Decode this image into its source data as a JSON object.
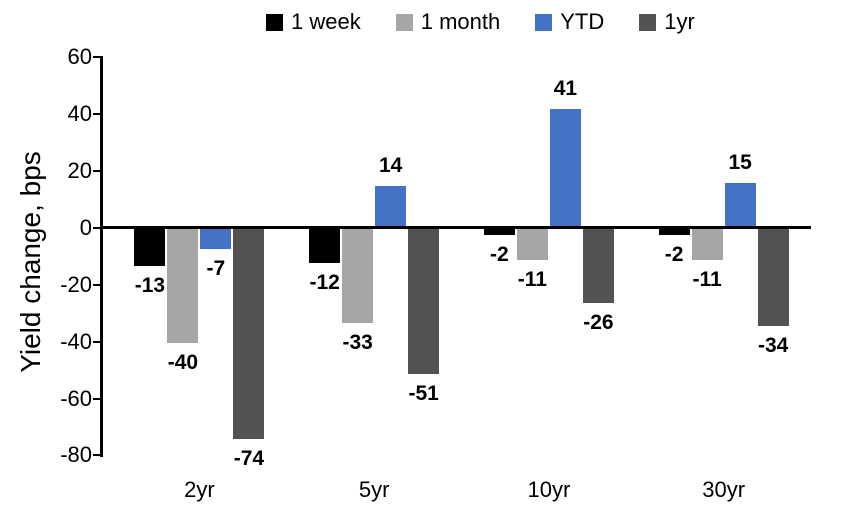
{
  "chart_data": {
    "type": "bar",
    "title": "",
    "ylabel": "Yield change, bps",
    "xlabel": "",
    "categories": [
      "2yr",
      "5yr",
      "10yr",
      "30yr"
    ],
    "series": [
      {
        "name": "1 week",
        "color": "#000000",
        "values": [
          -13,
          -12,
          -2,
          -2
        ]
      },
      {
        "name": "1 month",
        "color": "#A6A6A6",
        "values": [
          -40,
          -33,
          -11,
          -11
        ]
      },
      {
        "name": "YTD",
        "color": "#4472C4",
        "values": [
          -7,
          14,
          41,
          15
        ]
      },
      {
        "name": "1yr",
        "color": "#525252",
        "values": [
          -74,
          -51,
          -26,
          -34
        ]
      }
    ],
    "yticks": [
      60,
      40,
      20,
      0,
      -20,
      -40,
      -60,
      -80
    ],
    "ylim": [
      -80,
      60
    ],
    "ytick_step": 20,
    "legend_position": "top",
    "grid": false,
    "data_labels": true,
    "axis_color": "#000000",
    "background_color": "#FFFFFF"
  }
}
